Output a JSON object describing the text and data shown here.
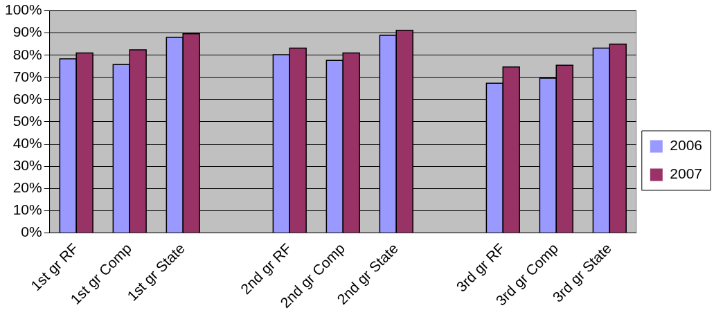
{
  "chart_data": {
    "type": "bar",
    "categories": [
      "1st gr RF",
      "1st gr Comp",
      "1st gr State",
      null,
      "2nd gr RF",
      "2nd gr Comp",
      "2nd gr State",
      null,
      "3rd gr RF",
      "3rd gr Comp",
      "3rd gr State"
    ],
    "series": [
      {
        "name": "2006",
        "color": "#9999ff",
        "values": [
          78.4,
          75.8,
          88,
          null,
          80.2,
          77.7,
          89,
          null,
          67.4,
          69.6,
          83.2
        ]
      },
      {
        "name": "2007",
        "color": "#993366",
        "values": [
          81,
          82.4,
          89.7,
          null,
          83.2,
          81,
          91.2,
          null,
          74.7,
          75.5,
          85
        ]
      }
    ],
    "ylim": [
      0,
      100
    ],
    "yticks": [
      {
        "value": 0,
        "label": "0%"
      },
      {
        "value": 10,
        "label": "10%"
      },
      {
        "value": 20,
        "label": "20%"
      },
      {
        "value": 30,
        "label": "30%"
      },
      {
        "value": 40,
        "label": "40%"
      },
      {
        "value": 50,
        "label": "50%"
      },
      {
        "value": 60,
        "label": "60%"
      },
      {
        "value": 70,
        "label": "70%"
      },
      {
        "value": 80,
        "label": "80%"
      },
      {
        "value": 90,
        "label": "90%"
      },
      {
        "value": 100,
        "label": "100%"
      }
    ],
    "grid": "y",
    "legend": "right"
  }
}
